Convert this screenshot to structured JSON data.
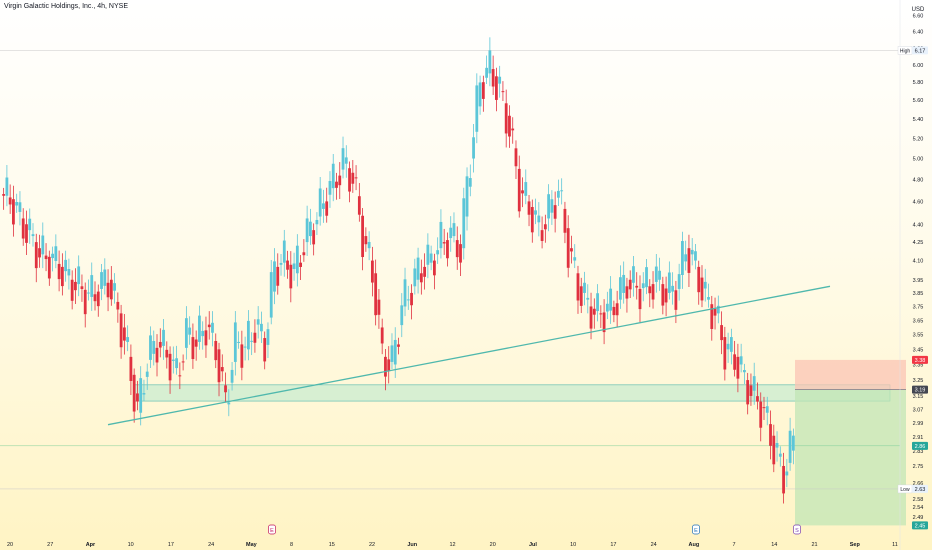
{
  "header": {
    "title": "Virgin Galactic Holdings, Inc., 4h, NYSE"
  },
  "currency": "USD",
  "colors": {
    "up": "#5cc6d8",
    "down": "#e0313f",
    "trendline": "#4fb8ad",
    "zone_fill": "#c9ecd0",
    "risk_fill": "#fbc4b4",
    "reward_fill": "#c2e6b5",
    "last_price_badge": "#26a69a",
    "stop_badge": "#f23645",
    "entry_badge": "#434651"
  },
  "price_axis": {
    "ticks": [
      "6.60",
      "6.40",
      "6.20",
      "6.00",
      "5.80",
      "5.60",
      "5.40",
      "5.20",
      "5.00",
      "4.80",
      "4.60",
      "4.40",
      "4.25",
      "4.10",
      "3.95",
      "3.85",
      "3.75",
      "3.65",
      "3.55",
      "3.45",
      "3.35",
      "3.25",
      "3.15",
      "3.07",
      "2.99",
      "2.91",
      "2.83",
      "2.75",
      "2.66",
      "2.58",
      "2.54",
      "2.49",
      "2.45"
    ],
    "high_label": "High",
    "high_value": "6.17",
    "low_label": "Low",
    "low_value": "2.63",
    "stop_value": "3.38",
    "entry_value": "3.19",
    "last_value": "2.86",
    "target_value": "2.45"
  },
  "time_axis": {
    "labels": [
      "20",
      "27",
      "Apr",
      "10",
      "17",
      "24",
      "May",
      "8",
      "15",
      "22",
      "Jun",
      "12",
      "20",
      "Jul",
      "10",
      "17",
      "24",
      "Aug",
      "7",
      "14",
      "21",
      "Sep",
      "11"
    ]
  },
  "event_markers": [
    {
      "label": "E",
      "kind": "earnings"
    },
    {
      "label": "E",
      "kind": "earnings-upcoming"
    },
    {
      "label": "S",
      "kind": "split"
    }
  ],
  "chart_data": {
    "type": "candlestick",
    "title": "Virgin Galactic Holdings, Inc., 4h, NYSE",
    "ylim": [
      2.4,
      6.7
    ],
    "y_scale": "log",
    "grid": false,
    "legend": "none",
    "x": [
      "Mar 20",
      "Mar 27",
      "Apr 3",
      "Apr 10",
      "Apr 17",
      "Apr 24",
      "May 1",
      "May 8",
      "May 15",
      "May 22",
      "Jun 1",
      "Jun 12",
      "Jun 20",
      "Jul 3",
      "Jul 10",
      "Jul 17",
      "Jul 24",
      "Aug 1",
      "Aug 7",
      "Aug 14",
      "Aug 21",
      "Sep 1",
      "Sep 11"
    ],
    "close_path": [
      4.62,
      4.45,
      4.3,
      4.15,
      4.12,
      4.05,
      3.95,
      3.9,
      3.82,
      3.88,
      3.95,
      3.7,
      3.4,
      3.05,
      3.38,
      3.5,
      3.42,
      3.28,
      3.55,
      3.5,
      3.62,
      3.45,
      3.1,
      3.5,
      3.45,
      3.62,
      3.48,
      4.05,
      4.1,
      4.0,
      4.25,
      4.4,
      4.6,
      4.78,
      4.95,
      4.82,
      4.3,
      4.0,
      3.4,
      3.35,
      3.75,
      3.9,
      4.05,
      4.1,
      4.25,
      4.3,
      4.2,
      5.0,
      5.8,
      5.95,
      5.7,
      5.3,
      4.7,
      4.55,
      4.35,
      4.5,
      4.7,
      4.2,
      3.9,
      3.75,
      3.7,
      3.72,
      3.8,
      3.95,
      3.88,
      3.9,
      3.95,
      3.85,
      3.88,
      4.2,
      4.05,
      3.8,
      3.7,
      3.45,
      3.4,
      3.25,
      3.15,
      3.05,
      2.85,
      2.7,
      2.9
    ],
    "series": [
      {
        "name": "",
        "kind": "trendline",
        "points": [
          [
            "Apr 5",
            2.98
          ],
          [
            "Sep 1",
            3.9
          ]
        ]
      },
      {
        "name": "",
        "kind": "support-zone",
        "y": [
          3.12,
          3.22
        ],
        "x": [
          "Apr 10",
          "Aug 18"
        ]
      },
      {
        "name": "",
        "kind": "short-position",
        "entry": 3.19,
        "stop": 3.38,
        "target": 2.45,
        "x": [
          "Aug 21",
          "Sep 11"
        ]
      }
    ]
  }
}
